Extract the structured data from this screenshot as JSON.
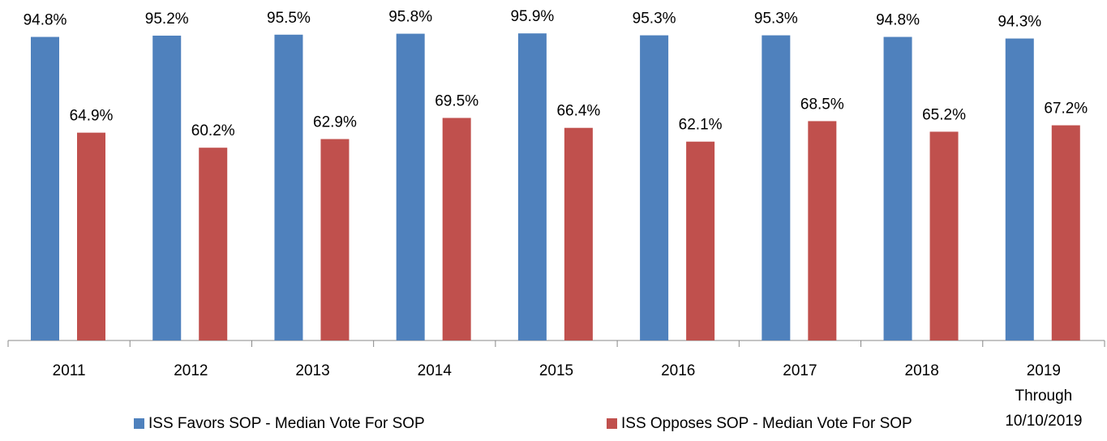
{
  "chart_data": {
    "type": "bar",
    "categories": [
      "2011",
      "2012",
      "2013",
      "2014",
      "2015",
      "2016",
      "2017",
      "2018",
      "2019 Through 10/10/2019"
    ],
    "series": [
      {
        "name": "ISS Favors SOP - Median Vote For SOP",
        "color": "#4f81bd",
        "values": [
          94.8,
          95.2,
          95.5,
          95.8,
          95.9,
          95.3,
          95.3,
          94.8,
          94.3
        ],
        "value_labels": [
          "94.8%",
          "95.2%",
          "95.5%",
          "95.8%",
          "95.9%",
          "95.3%",
          "95.3%",
          "94.8%",
          "94.3%"
        ]
      },
      {
        "name": "ISS Opposes SOP - Median Vote For SOP",
        "color": "#c0504d",
        "values": [
          64.9,
          60.2,
          62.9,
          69.5,
          66.4,
          62.1,
          68.5,
          65.2,
          67.2
        ],
        "value_labels": [
          "64.9%",
          "60.2%",
          "62.9%",
          "69.5%",
          "66.4%",
          "62.1%",
          "68.5%",
          "65.2%",
          "67.2%"
        ]
      }
    ],
    "ylim": [
      0,
      100
    ],
    "legend": "bottom"
  }
}
